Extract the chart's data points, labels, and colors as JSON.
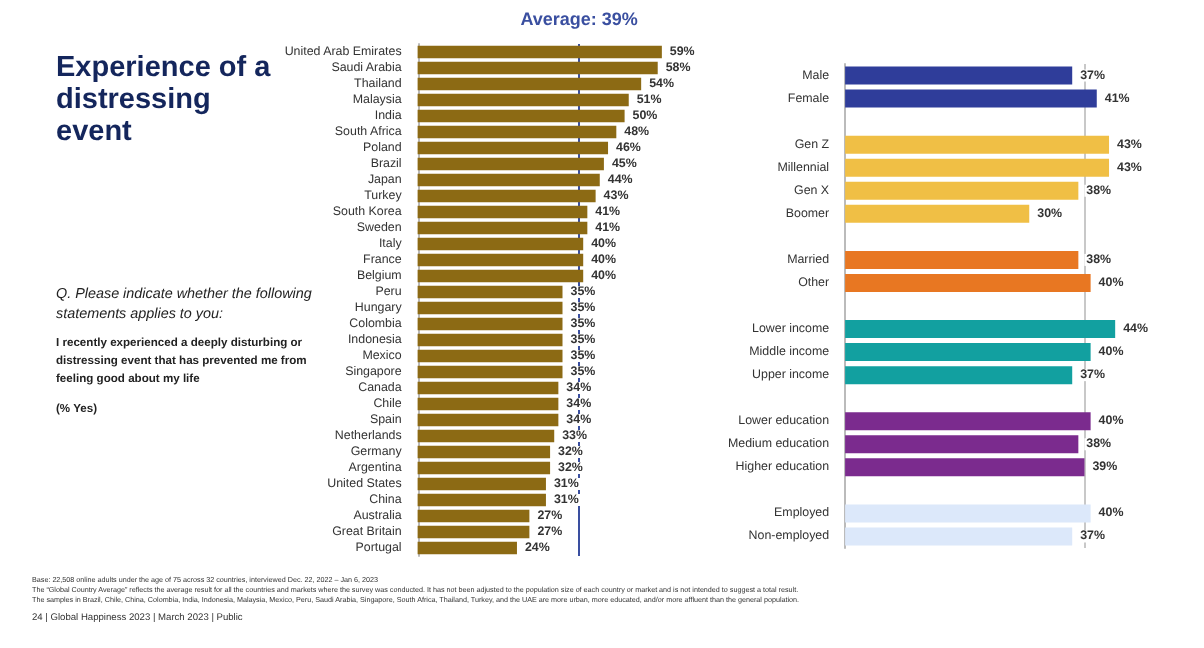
{
  "chart_data": [
    {
      "type": "bar",
      "orientation": "horizontal",
      "title": "Experience of a distressing event",
      "subtitle": "Q. Please indicate whether the following statements applies to you:",
      "annotations": [
        "I recently experienced a deeply disturbing or distressing event that has prevented me from feeling good about my life",
        "(% Yes)",
        "Base: 22,508 online adults under the age of 75 across 32 countries, interviewed Dec. 22, 2022 – Jan 6, 2023",
        "The “Global Country Average” reflects the average result for all the countries and markets where the survey was conducted. It has not been adjusted to the population size of each country or market and is not intended to suggest a total result.",
        "The samples in Brazil, Chile, China, Colombia, India, Indonesia, Malaysia, Mexico, Peru, Saudi Arabia, Singapore, South Africa, Thailand, Turkey, and the UAE are more urban, more educated, and/or more affluent than the general population.",
        "24 | Global Happiness 2023 | March 2023 | Public"
      ],
      "categories": [
        "United Arab Emirates",
        "Saudi Arabia",
        "Thailand",
        "Malaysia",
        "India",
        "South Africa",
        "Poland",
        "Brazil",
        "Japan",
        "Turkey",
        "South Korea",
        "Sweden",
        "Italy",
        "France",
        "Belgium",
        "Peru",
        "Hungary",
        "Colombia",
        "Indonesia",
        "Mexico",
        "Singapore",
        "Canada",
        "Chile",
        "Spain",
        "Netherlands",
        "Germany",
        "Argentina",
        "United States",
        "China",
        "Australia",
        "Great Britain",
        "Portugal"
      ],
      "values": [
        59,
        58,
        54,
        51,
        50,
        48,
        46,
        45,
        44,
        43,
        41,
        41,
        40,
        40,
        40,
        35,
        35,
        35,
        35,
        35,
        35,
        34,
        34,
        34,
        33,
        32,
        32,
        31,
        31,
        27,
        27,
        24
      ],
      "value_labels": [
        "59%",
        "58%",
        "54%",
        "51%",
        "50%",
        "48%",
        "46%",
        "45%",
        "44%",
        "43%",
        "41%",
        "41%",
        "40%",
        "40%",
        "40%",
        "35%",
        "35%",
        "35%",
        "35%",
        "35%",
        "35%",
        "34%",
        "34%",
        "34%",
        "33%",
        "32%",
        "32%",
        "31%",
        "31%",
        "27%",
        "27%",
        "24%"
      ],
      "color": "#8c6a14",
      "tick_labels": "y",
      "grid": false,
      "ref_lines": [
        {
          "axis": "x",
          "value": 39,
          "label": "Average: 39%",
          "color": "#3a4fa0"
        }
      ]
    },
    {
      "type": "bar",
      "orientation": "horizontal",
      "categories": [
        "Male",
        "Female",
        null,
        "Gen Z",
        "Millennial",
        "Gen X",
        "Boomer",
        null,
        "Married",
        "Other",
        null,
        "Lower income",
        "Middle income",
        "Upper income",
        null,
        "Lower education",
        "Medium education",
        "Higher education",
        null,
        "Employed",
        "Non-employed"
      ],
      "values": [
        37,
        41,
        null,
        43,
        43,
        38,
        30,
        null,
        38,
        40,
        null,
        44,
        40,
        37,
        null,
        40,
        38,
        39,
        null,
        40,
        37
      ],
      "value_labels": [
        "37%",
        "41%",
        null,
        "43%",
        "43%",
        "38%",
        "30%",
        null,
        "38%",
        "40%",
        null,
        "44%",
        "40%",
        "37%",
        null,
        "40%",
        "38%",
        "39%",
        null,
        "40%",
        "37%"
      ],
      "colors": [
        "#2f3d9a",
        "#2f3d9a",
        null,
        "#f0bf45",
        "#f0bf45",
        "#f0bf45",
        "#f0bf45",
        null,
        "#e87722",
        "#e87722",
        null,
        "#12a0a0",
        "#12a0a0",
        "#12a0a0",
        null,
        "#7b2b8e",
        "#7b2b8e",
        "#7b2b8e",
        null,
        "#dce8fa",
        "#dce8fa"
      ],
      "tick_labels": "y",
      "grid": false,
      "ref_lines": [
        {
          "axis": "x",
          "value": 39,
          "label": null,
          "color": "#c8c8c8"
        }
      ]
    }
  ]
}
